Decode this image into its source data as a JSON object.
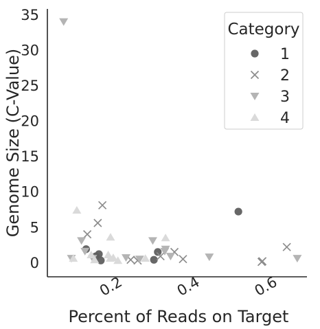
{
  "chart_data": {
    "type": "scatter",
    "xlabel": "Percent of Reads on Target",
    "ylabel": "Genome Size (C-Value)",
    "xlim": [
      0.03,
      0.7
    ],
    "ylim": [
      -2,
      35.8
    ],
    "xticks": [
      0.2,
      0.4,
      0.6
    ],
    "xtick_labels": [
      "0.2",
      "0.4",
      "0.6"
    ],
    "yticks": [
      0,
      5,
      10,
      15,
      20,
      25,
      30,
      35
    ],
    "ytick_labels": [
      "0",
      "5",
      "10",
      "15",
      "20",
      "25",
      "30",
      "35"
    ],
    "grid": false,
    "legend": {
      "title": "Category",
      "position": "top-right"
    },
    "series": [
      {
        "name": "1",
        "marker": "circle",
        "color": "#5f5f5f",
        "points": [
          [
            0.13,
            1.9
          ],
          [
            0.155,
            0.9
          ],
          [
            0.163,
            1.2
          ],
          [
            0.168,
            0.3
          ],
          [
            0.305,
            0.4
          ],
          [
            0.315,
            1.5
          ],
          [
            0.523,
            7.2
          ]
        ]
      },
      {
        "name": "2",
        "marker": "x",
        "color": "#8c8c8c",
        "points": [
          [
            0.133,
            4.0
          ],
          [
            0.16,
            5.6
          ],
          [
            0.172,
            8.1
          ],
          [
            0.245,
            0.4
          ],
          [
            0.263,
            0.3
          ],
          [
            0.322,
            0.9
          ],
          [
            0.358,
            1.5
          ],
          [
            0.38,
            0.5
          ],
          [
            0.583,
            0.1
          ],
          [
            0.585,
            0.2
          ],
          [
            0.648,
            2.2
          ]
        ]
      },
      {
        "name": "3",
        "marker": "triangle-down",
        "color": "#b4b4b4",
        "points": [
          [
            0.072,
            34.0
          ],
          [
            0.092,
            0.6
          ],
          [
            0.118,
            3.1
          ],
          [
            0.127,
            1.6
          ],
          [
            0.147,
            0.6
          ],
          [
            0.233,
            0.7
          ],
          [
            0.268,
            0.5
          ],
          [
            0.302,
            3.1
          ],
          [
            0.333,
            1.6
          ],
          [
            0.335,
            1.9
          ],
          [
            0.348,
            0.9
          ],
          [
            0.448,
            0.8
          ],
          [
            0.675,
            0.6
          ]
        ]
      },
      {
        "name": "4",
        "marker": "triangle-up",
        "color": "#dadada",
        "points": [
          [
            0.097,
            0.6
          ],
          [
            0.106,
            7.4
          ],
          [
            0.143,
            1.1
          ],
          [
            0.152,
            0.4
          ],
          [
            0.187,
            1.1
          ],
          [
            0.192,
            0.6
          ],
          [
            0.193,
            3.6
          ],
          [
            0.2,
            0.7
          ],
          [
            0.212,
            0.3
          ],
          [
            0.283,
            0.6
          ],
          [
            0.335,
            3.5
          ]
        ]
      }
    ]
  }
}
